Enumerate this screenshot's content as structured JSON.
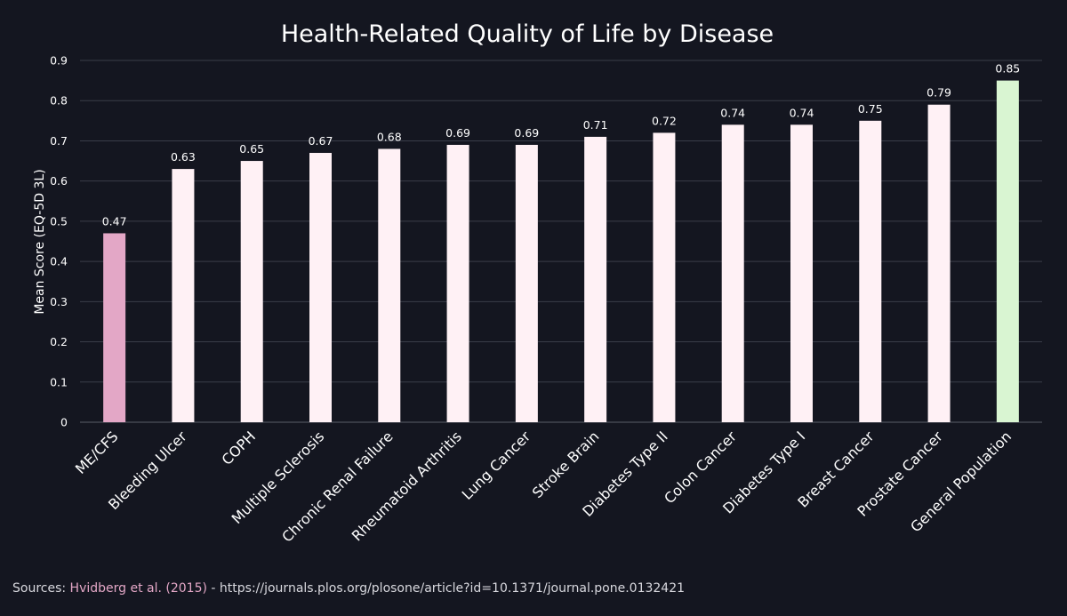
{
  "colors": {
    "background": "#141620",
    "highlight_bar": "#e3a7c6",
    "default_bar": "#fff1f5",
    "reference_bar": "#d9f5d2",
    "grid": "#3a3d48",
    "source_link": "#e3a7c6"
  },
  "chart_data": {
    "type": "bar",
    "title": "Health-Related Quality of Life by Disease",
    "xlabel": "",
    "ylabel": "Mean Score (EQ-5D 3L)",
    "ylim": [
      0,
      0.9
    ],
    "yticks": [
      0,
      0.1,
      0.2,
      0.3,
      0.4,
      0.5,
      0.6,
      0.7,
      0.8,
      0.9
    ],
    "ytick_labels": [
      "0",
      "0.1",
      "0.2",
      "0.3",
      "0.4",
      "0.5",
      "0.6",
      "0.7",
      "0.8",
      "0.9"
    ],
    "grid": true,
    "categories": [
      "ME/CFS",
      "Bleeding Ulcer",
      "COPH",
      "Multiple Sclerosis",
      "Chronic Renal Failure",
      "Rheumatoid Arthritis",
      "Lung Cancer",
      "Stroke Brain",
      "Diabetes Type II",
      "Colon Cancer",
      "Diabetes Type I",
      "Breast Cancer",
      "Prostate Cancer",
      "General Population"
    ],
    "values": [
      0.47,
      0.63,
      0.65,
      0.67,
      0.68,
      0.69,
      0.69,
      0.71,
      0.72,
      0.74,
      0.74,
      0.75,
      0.79,
      0.85
    ],
    "value_labels": [
      "0.47",
      "0.63",
      "0.65",
      "0.67",
      "0.68",
      "0.69",
      "0.69",
      "0.71",
      "0.72",
      "0.74",
      "0.74",
      "0.75",
      "0.79",
      "0.85"
    ],
    "bar_colors": [
      "#e3a7c6",
      "#fff1f5",
      "#fff1f5",
      "#fff1f5",
      "#fff1f5",
      "#fff1f5",
      "#fff1f5",
      "#fff1f5",
      "#fff1f5",
      "#fff1f5",
      "#fff1f5",
      "#fff1f5",
      "#fff1f5",
      "#d9f5d2"
    ]
  },
  "footer": {
    "prefix": "Sources: ",
    "citation": "Hvidberg et al. (2015)",
    "rest": " - https://journals.plos.org/plosone/article?id=10.1371/journal.pone.0132421"
  }
}
